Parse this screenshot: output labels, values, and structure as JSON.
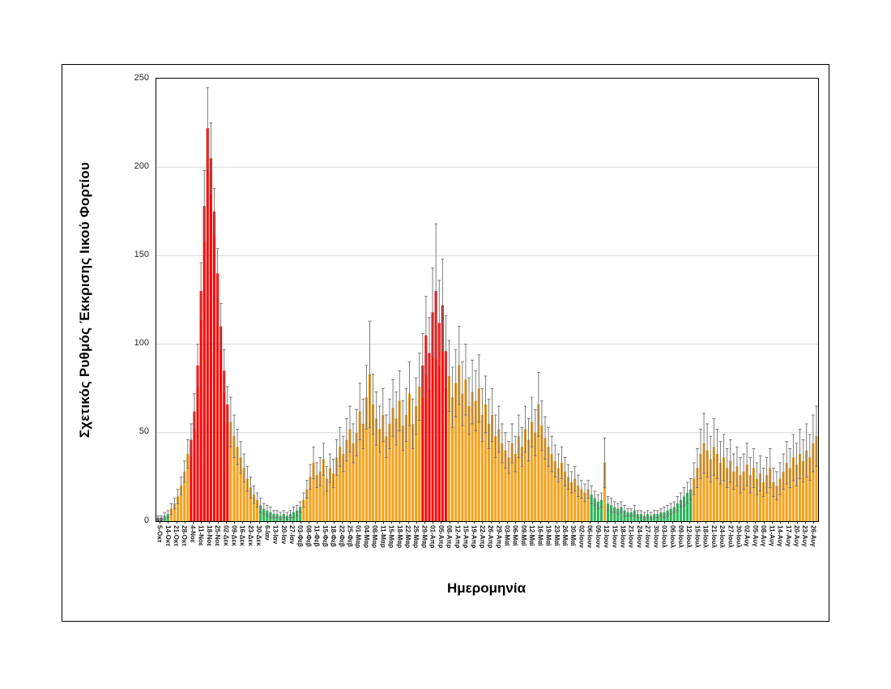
{
  "figure": {
    "background": "#FFFFFF",
    "border_color": "#000000"
  },
  "colors": {
    "o": "#F5A21D",
    "r": "#FF0707",
    "g": "#2EB65A",
    "d": "#4A4A4A",
    "error": "#707070",
    "grid": "#D9D9D9",
    "axis": "#000000",
    "tick_text": "#262626"
  },
  "chart_data": {
    "type": "bar",
    "title": "",
    "ylabel": "Σχετικός Ρυθμός Έκκρισης Ιικού Φορτίου",
    "xlabel": "Ημερομηνία",
    "ylim": [
      0,
      250
    ],
    "y_ticks": [
      0,
      50,
      100,
      150,
      200,
      250
    ],
    "grid": "horizontal-gridlines-at-50",
    "legend_position": "none",
    "error_bars": "symmetric, gray with caps",
    "bars_format": [
      "value",
      "error_half_range",
      "color_key"
    ],
    "bar_color_key": {
      "o": "orange",
      "r": "red",
      "g": "green",
      "d": "dark-gray"
    },
    "x_tick_labels": [
      "5-Οκτ",
      "14-Οκτ",
      "21-Οκτ",
      "28-Οκτ",
      "4-Νοε",
      "11-Νοε",
      "18-Νοε",
      "25-Νοε",
      "02-Δεκ",
      "09-Δεκ",
      "16-Δεκ",
      "23-Δεκ",
      "30-Δεκ",
      "6-Ιαν",
      "13-Ιαν",
      "20-Ιαν",
      "27-Ιαν",
      "03-Φεβ",
      "08-Φεβ",
      "11-Φεβ",
      "15-Φεβ",
      "18-Φεβ",
      "22-Φεβ",
      "25-Φεβ",
      "01-Μαρ",
      "04-Μαρ",
      "08-Μαρ",
      "11-Μαρ",
      "15-Μαρ",
      "18-Μαρ",
      "22-Μαρ",
      "25-Μαρ",
      "29-Μαρ",
      "01-Απρ",
      "05-Απρ",
      "08-Απρ",
      "12-Απρ",
      "15-Απρ",
      "19-Απρ",
      "22-Απρ",
      "26-Απρ",
      "29-Απρ",
      "03-Μαϊ",
      "06-Μαϊ",
      "09-Μαϊ",
      "12-Μαϊ",
      "16-Μαϊ",
      "19-Μαϊ",
      "23-Μαϊ",
      "26-Μαϊ",
      "30-Μαϊ",
      "02-Ιουν",
      "06-Ιουν",
      "09-Ιουν",
      "12-Ιουν",
      "15-Ιουν",
      "18-Ιουν",
      "21-Ιουν",
      "24-Ιουν",
      "27-Ιουν",
      "30-Ιουν",
      "03-Ιουλ",
      "06-Ιουλ",
      "09-Ιουλ",
      "12-Ιουλ",
      "15-Ιουλ",
      "18-Ιουλ",
      "21-Ιουλ",
      "24-Ιουλ",
      "27-Ιουλ",
      "30-Ιουλ",
      "02-Αυγ",
      "05-Αυγ",
      "08-Αυγ",
      "11-Αυγ",
      "14-Αυγ",
      "17-Αυγ",
      "20-Αυγ",
      "23-Αυγ",
      "26-Αυγ"
    ],
    "bars": [
      [
        2,
        1,
        "d"
      ],
      [
        2,
        1,
        "d"
      ],
      [
        3,
        2,
        "g"
      ],
      [
        4,
        2,
        "g"
      ],
      [
        7,
        3,
        "o"
      ],
      [
        10,
        3,
        "o"
      ],
      [
        14,
        4,
        "o"
      ],
      [
        20,
        5,
        "o"
      ],
      [
        28,
        6,
        "o"
      ],
      [
        38,
        8,
        "o"
      ],
      [
        46,
        9,
        "r"
      ],
      [
        62,
        10,
        "r"
      ],
      [
        88,
        12,
        "r"
      ],
      [
        130,
        16,
        "r"
      ],
      [
        178,
        20,
        "r"
      ],
      [
        222,
        23,
        "r"
      ],
      [
        205,
        20,
        "r"
      ],
      [
        175,
        13,
        "r"
      ],
      [
        140,
        14,
        "r"
      ],
      [
        110,
        13,
        "r"
      ],
      [
        85,
        12,
        "r"
      ],
      [
        66,
        10,
        "r"
      ],
      [
        56,
        14,
        "o"
      ],
      [
        48,
        12,
        "o"
      ],
      [
        42,
        10,
        "o"
      ],
      [
        36,
        9,
        "o"
      ],
      [
        30,
        8,
        "o"
      ],
      [
        24,
        7,
        "o"
      ],
      [
        19,
        6,
        "o"
      ],
      [
        15,
        5,
        "o"
      ],
      [
        12,
        4,
        "o"
      ],
      [
        9,
        4,
        "g"
      ],
      [
        7,
        3,
        "g"
      ],
      [
        6,
        3,
        "g"
      ],
      [
        5,
        3,
        "g"
      ],
      [
        4,
        2,
        "g"
      ],
      [
        4,
        2,
        "g"
      ],
      [
        3,
        2,
        "g"
      ],
      [
        4,
        2,
        "g"
      ],
      [
        3,
        2,
        "g"
      ],
      [
        4,
        2,
        "g"
      ],
      [
        5,
        3,
        "g"
      ],
      [
        6,
        3,
        "g"
      ],
      [
        8,
        3,
        "g"
      ],
      [
        12,
        4,
        "o"
      ],
      [
        18,
        5,
        "o"
      ],
      [
        25,
        7,
        "o"
      ],
      [
        33,
        9,
        "o"
      ],
      [
        26,
        7,
        "o"
      ],
      [
        28,
        8,
        "o"
      ],
      [
        35,
        9,
        "o"
      ],
      [
        24,
        7,
        "o"
      ],
      [
        30,
        8,
        "o"
      ],
      [
        27,
        8,
        "o"
      ],
      [
        36,
        10,
        "o"
      ],
      [
        42,
        11,
        "o"
      ],
      [
        38,
        10,
        "o"
      ],
      [
        46,
        12,
        "o"
      ],
      [
        52,
        13,
        "o"
      ],
      [
        44,
        11,
        "o"
      ],
      [
        50,
        13,
        "o"
      ],
      [
        62,
        16,
        "o"
      ],
      [
        55,
        14,
        "o"
      ],
      [
        70,
        18,
        "o"
      ],
      [
        83,
        30,
        "o"
      ],
      [
        66,
        17,
        "o"
      ],
      [
        58,
        15,
        "o"
      ],
      [
        52,
        13,
        "o"
      ],
      [
        60,
        15,
        "o"
      ],
      [
        48,
        12,
        "o"
      ],
      [
        55,
        14,
        "o"
      ],
      [
        64,
        16,
        "o"
      ],
      [
        58,
        15,
        "o"
      ],
      [
        68,
        17,
        "o"
      ],
      [
        54,
        14,
        "o"
      ],
      [
        60,
        15,
        "o"
      ],
      [
        72,
        18,
        "o"
      ],
      [
        55,
        14,
        "o"
      ],
      [
        65,
        16,
        "o"
      ],
      [
        76,
        19,
        "o"
      ],
      [
        88,
        18,
        "r"
      ],
      [
        105,
        22,
        "r"
      ],
      [
        95,
        20,
        "r"
      ],
      [
        118,
        25,
        "r"
      ],
      [
        130,
        38,
        "r"
      ],
      [
        112,
        24,
        "r"
      ],
      [
        122,
        26,
        "r"
      ],
      [
        96,
        20,
        "r"
      ],
      [
        82,
        20,
        "o"
      ],
      [
        70,
        17,
        "o"
      ],
      [
        78,
        19,
        "o"
      ],
      [
        88,
        22,
        "o"
      ],
      [
        72,
        18,
        "o"
      ],
      [
        80,
        20,
        "o"
      ],
      [
        65,
        16,
        "o"
      ],
      [
        73,
        18,
        "o"
      ],
      [
        68,
        17,
        "o"
      ],
      [
        75,
        19,
        "o"
      ],
      [
        60,
        15,
        "o"
      ],
      [
        66,
        16,
        "o"
      ],
      [
        55,
        14,
        "o"
      ],
      [
        60,
        15,
        "o"
      ],
      [
        48,
        12,
        "o"
      ],
      [
        52,
        13,
        "o"
      ],
      [
        44,
        11,
        "o"
      ],
      [
        40,
        10,
        "o"
      ],
      [
        36,
        9,
        "o"
      ],
      [
        44,
        11,
        "o"
      ],
      [
        38,
        10,
        "o"
      ],
      [
        48,
        12,
        "o"
      ],
      [
        42,
        11,
        "o"
      ],
      [
        52,
        13,
        "o"
      ],
      [
        46,
        12,
        "o"
      ],
      [
        56,
        14,
        "o"
      ],
      [
        50,
        13,
        "o"
      ],
      [
        66,
        18,
        "o"
      ],
      [
        54,
        14,
        "o"
      ],
      [
        47,
        12,
        "o"
      ],
      [
        42,
        11,
        "o"
      ],
      [
        38,
        10,
        "o"
      ],
      [
        34,
        9,
        "o"
      ],
      [
        30,
        8,
        "o"
      ],
      [
        33,
        9,
        "o"
      ],
      [
        28,
        8,
        "o"
      ],
      [
        25,
        7,
        "o"
      ],
      [
        22,
        6,
        "o"
      ],
      [
        24,
        7,
        "o"
      ],
      [
        20,
        6,
        "o"
      ],
      [
        18,
        5,
        "o"
      ],
      [
        16,
        5,
        "o"
      ],
      [
        18,
        5,
        "o"
      ],
      [
        15,
        5,
        "g"
      ],
      [
        13,
        4,
        "g"
      ],
      [
        11,
        4,
        "g"
      ],
      [
        12,
        4,
        "g"
      ],
      [
        33,
        14,
        "o"
      ],
      [
        10,
        4,
        "g"
      ],
      [
        9,
        4,
        "g"
      ],
      [
        8,
        3,
        "g"
      ],
      [
        7,
        3,
        "g"
      ],
      [
        8,
        3,
        "g"
      ],
      [
        6,
        3,
        "g"
      ],
      [
        5,
        2,
        "g"
      ],
      [
        5,
        2,
        "g"
      ],
      [
        6,
        3,
        "g"
      ],
      [
        4,
        2,
        "g"
      ],
      [
        4,
        2,
        "g"
      ],
      [
        3,
        2,
        "g"
      ],
      [
        4,
        2,
        "g"
      ],
      [
        3,
        2,
        "g"
      ],
      [
        4,
        2,
        "g"
      ],
      [
        4,
        2,
        "g"
      ],
      [
        5,
        2,
        "g"
      ],
      [
        5,
        3,
        "g"
      ],
      [
        6,
        3,
        "g"
      ],
      [
        7,
        3,
        "g"
      ],
      [
        8,
        3,
        "g"
      ],
      [
        10,
        4,
        "g"
      ],
      [
        12,
        4,
        "g"
      ],
      [
        14,
        5,
        "g"
      ],
      [
        16,
        6,
        "g"
      ],
      [
        18,
        6,
        "g"
      ],
      [
        24,
        9,
        "o"
      ],
      [
        30,
        11,
        "o"
      ],
      [
        38,
        14,
        "o"
      ],
      [
        44,
        17,
        "o"
      ],
      [
        40,
        15,
        "o"
      ],
      [
        35,
        13,
        "o"
      ],
      [
        42,
        16,
        "o"
      ],
      [
        38,
        14,
        "o"
      ],
      [
        33,
        12,
        "o"
      ],
      [
        36,
        13,
        "o"
      ],
      [
        30,
        11,
        "o"
      ],
      [
        34,
        12,
        "o"
      ],
      [
        28,
        10,
        "o"
      ],
      [
        31,
        11,
        "o"
      ],
      [
        26,
        10,
        "o"
      ],
      [
        28,
        10,
        "o"
      ],
      [
        32,
        12,
        "o"
      ],
      [
        26,
        10,
        "o"
      ],
      [
        30,
        11,
        "o"
      ],
      [
        24,
        9,
        "o"
      ],
      [
        27,
        10,
        "o"
      ],
      [
        22,
        8,
        "o"
      ],
      [
        26,
        10,
        "o"
      ],
      [
        30,
        11,
        "o"
      ],
      [
        22,
        8,
        "o"
      ],
      [
        20,
        8,
        "o"
      ],
      [
        24,
        9,
        "o"
      ],
      [
        28,
        10,
        "o"
      ],
      [
        33,
        12,
        "o"
      ],
      [
        30,
        11,
        "o"
      ],
      [
        36,
        13,
        "o"
      ],
      [
        32,
        12,
        "o"
      ],
      [
        38,
        14,
        "o"
      ],
      [
        34,
        12,
        "o"
      ],
      [
        40,
        15,
        "o"
      ],
      [
        36,
        13,
        "o"
      ],
      [
        44,
        16,
        "o"
      ],
      [
        48,
        17,
        "o"
      ]
    ]
  }
}
